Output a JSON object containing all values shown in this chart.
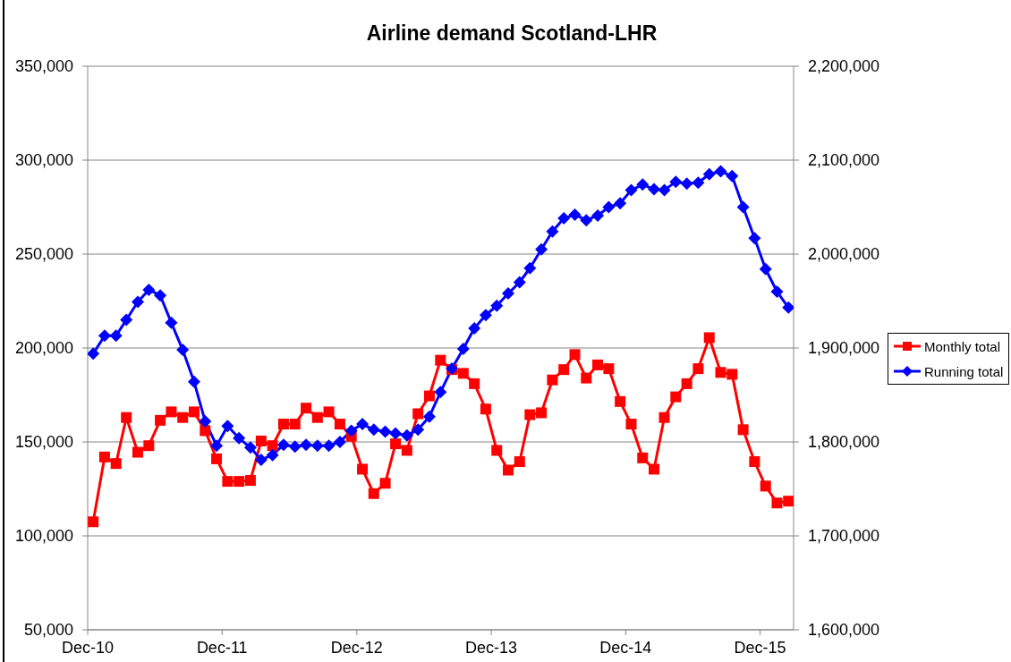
{
  "chart_data": {
    "type": "line",
    "title": "Airline demand Scotland-LHR",
    "x": [
      "2010-12-16",
      "2011-01-16",
      "2011-02-16",
      "2011-03-16",
      "2011-04-16",
      "2011-05-16",
      "2011-06-16",
      "2011-07-16",
      "2011-08-16",
      "2011-09-16",
      "2011-10-16",
      "2011-11-16",
      "2011-12-16",
      "2012-01-16",
      "2012-02-16",
      "2012-03-16",
      "2012-04-16",
      "2012-05-16",
      "2012-06-16",
      "2012-07-16",
      "2012-08-16",
      "2012-09-16",
      "2012-10-16",
      "2012-11-16",
      "2012-12-16",
      "2013-01-16",
      "2013-02-16",
      "2013-03-16",
      "2013-04-16",
      "2013-05-16",
      "2013-06-16",
      "2013-07-16",
      "2013-08-16",
      "2013-09-16",
      "2013-10-16",
      "2013-11-16",
      "2013-12-16",
      "2014-01-16",
      "2014-02-16",
      "2014-03-16",
      "2014-04-16",
      "2014-05-16",
      "2014-06-16",
      "2014-07-16",
      "2014-08-16",
      "2014-09-16",
      "2014-10-16",
      "2014-11-16",
      "2014-12-16",
      "2015-01-16",
      "2015-02-16",
      "2015-03-16",
      "2015-04-16",
      "2015-05-16",
      "2015-06-16",
      "2015-07-16",
      "2015-08-16",
      "2015-09-16",
      "2015-10-16",
      "2015-11-16",
      "2015-12-16",
      "2016-01-16",
      "2016-02-16"
    ],
    "series": [
      {
        "name": "Monthly total",
        "color": "#ff0000",
        "marker": "square",
        "values": [
          107500,
          142000,
          138500,
          163000,
          144500,
          148000,
          161500,
          166000,
          163000,
          166000,
          156000,
          141000,
          129000,
          129000,
          129500,
          150500,
          148000,
          159500,
          159500,
          168000,
          163000,
          166000,
          159500,
          153000,
          135500,
          122500,
          128000,
          149000,
          145500,
          165000,
          174500,
          193500,
          188500,
          186500,
          181000,
          167500,
          145500,
          135000,
          139500,
          164500,
          165500,
          183000,
          188500,
          196500,
          184000,
          191000,
          189000,
          171500,
          159500,
          141500,
          135500,
          163000,
          174000,
          181000,
          189000,
          205500,
          187000,
          186000,
          156500,
          139500,
          126500,
          117500,
          118500
        ]
      },
      {
        "name": "Running total",
        "color": "#0000ff",
        "marker": "diamond",
        "axis": "y2",
        "values": [
          1894000,
          1913000,
          1913000,
          1930000,
          1949000,
          1962000,
          1956000,
          1927000,
          1898000,
          1864000,
          1822000,
          1796000,
          1817000,
          1804000,
          1794000,
          1781000,
          1786000,
          1797000,
          1795000,
          1797000,
          1796000,
          1796000,
          1800000,
          1812000,
          1819000,
          1813000,
          1811000,
          1809000,
          1807000,
          1813000,
          1827000,
          1853000,
          1878000,
          1899000,
          1921000,
          1935000,
          1945000,
          1958000,
          1970000,
          1985000,
          2005000,
          2024000,
          2038000,
          2042000,
          2036000,
          2041000,
          2050000,
          2054000,
          2068000,
          2074000,
          2069000,
          2068000,
          2077000,
          2075000,
          2076000,
          2085000,
          2088000,
          2083000,
          2050000,
          2017000,
          1984000,
          1960000,
          1943000
        ]
      }
    ],
    "xlim": [
      "2010-12",
      "2016-03"
    ],
    "xticks": [
      {
        "value": "2010-12",
        "label": "Dec-10"
      },
      {
        "value": "2011-12",
        "label": "Dec-11"
      },
      {
        "value": "2012-12",
        "label": "Dec-12"
      },
      {
        "value": "2013-12",
        "label": "Dec-13"
      },
      {
        "value": "2014-12",
        "label": "Dec-14"
      },
      {
        "value": "2015-12",
        "label": "Dec-15"
      }
    ],
    "ylim": [
      50000,
      350000
    ],
    "yticks": [
      {
        "value": 50000,
        "label": "50,000"
      },
      {
        "value": 100000,
        "label": "100,000"
      },
      {
        "value": 150000,
        "label": "150,000"
      },
      {
        "value": 200000,
        "label": "200,000"
      },
      {
        "value": 250000,
        "label": "250,000"
      },
      {
        "value": 300000,
        "label": "300,000"
      },
      {
        "value": 350000,
        "label": "350,000"
      }
    ],
    "y2lim": [
      1600000,
      2200000
    ],
    "y2ticks": [
      {
        "value": 1600000,
        "label": "1,600,000"
      },
      {
        "value": 1700000,
        "label": "1,700,000"
      },
      {
        "value": 1800000,
        "label": "1,800,000"
      },
      {
        "value": 1900000,
        "label": "1,900,000"
      },
      {
        "value": 2000000,
        "label": "2,000,000"
      },
      {
        "value": 2100000,
        "label": "2,100,000"
      },
      {
        "value": 2200000,
        "label": "2,200,000"
      }
    ],
    "grid": "y",
    "legend": "right"
  }
}
